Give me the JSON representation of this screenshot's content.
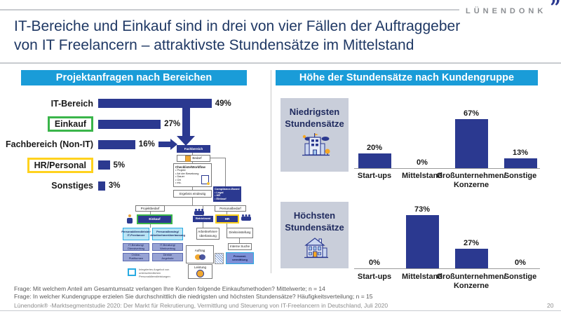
{
  "logo": {
    "text": "LÜNENDONK",
    "mark": "”"
  },
  "title": "IT-Bereiche und Einkauf sind in drei von vier Fällen der Auftraggeber\nvon IT Freelancern – attraktivste Stundensätze im Mittelstand",
  "colors": {
    "accent_cyan": "#1A9CD8",
    "bar_navy": "#2B3990",
    "title_navy": "#1F3864",
    "highlight_green": "#3AB54A",
    "highlight_yellow": "#FFD21E",
    "panel_gray": "#C9CEDA"
  },
  "left_panel": {
    "header": "Projektanfragen nach Bereichen"
  },
  "right_panel": {
    "header": "Höhe der Stundensätze nach Kundengruppe",
    "groups": [
      {
        "label": "Niedrigsten\nStundensätze"
      },
      {
        "label": "Höchsten\nStundensätze"
      }
    ]
  },
  "chart_data": [
    {
      "type": "bar",
      "orientation": "horizontal",
      "title": "Projektanfragen nach Bereichen",
      "categories": [
        "IT-Bereich",
        "Einkauf",
        "Fachbereich (Non-IT)",
        "HR/Personal",
        "Sonstiges"
      ],
      "values": [
        49,
        27,
        16,
        5,
        3
      ],
      "unit": "%",
      "highlights": [
        "none",
        "green",
        "none",
        "yellow",
        "none"
      ],
      "xlim": [
        0,
        55
      ]
    },
    {
      "type": "bar",
      "orientation": "vertical",
      "title": "Niedrigsten Stundensätze",
      "categories": [
        "Start-ups",
        "Mittelstand",
        "Großunternehmen/\nKonzerne",
        "Sonstige"
      ],
      "values": [
        20,
        0,
        67,
        13
      ],
      "unit": "%",
      "ylim": [
        0,
        80
      ]
    },
    {
      "type": "bar",
      "orientation": "vertical",
      "title": "Höchsten Stundensätze",
      "categories": [
        "Start-ups",
        "Mittelstand",
        "Großunternehmen/\nKonzerne",
        "Sonstige"
      ],
      "values": [
        0,
        73,
        27,
        0
      ],
      "unit": "%",
      "ylim": [
        0,
        80
      ]
    }
  ],
  "flowchart": {
    "labels": {
      "fachbereich": "Fachbereich",
      "bedarf": "Bedarf",
      "checkliste_title": "Checkliste/Workflow",
      "checkliste_items": "• Projekt\n• Art der Besetzung\n• Dauer\n• Ort\n• etc.",
      "ergebnis": "Ergebnis eindeutig",
      "nein": "Nein",
      "compliance_title": "Compliance-Board",
      "compliance_items": "• Legal\n• HR\n• Einkauf",
      "projektbedarf": "Projektbedarf",
      "personalbedarf": "Personalbedarf",
      "einkauf": "Einkauf",
      "betriebsrat": "Betriebsrat",
      "hr": "HR",
      "dienstleister": "Personaldienstleister/\nIT-Freelancer",
      "leasing": "Personalleasing/\nArbeitnehmerüberlassung",
      "dienstvertrag": "IT-Beratung/\nDienstvertrag",
      "werkvertrag": "IT-Beratung/\nWerkvertrag",
      "plattformen": "Online-\nPlattformen",
      "direkte": "Direkte\nAngebote",
      "anue": "Arbeitnehmer-\nüberlassung",
      "direkteinstellung": "Direkteinstellung",
      "interne": "Interne Suche",
      "vermittlung": "Personal-\nvermittlung",
      "auftrag": "Auftrag",
      "leistung": "Leistung",
      "legend": "Integriertes Angebot von\nunterschiedlichen Personaldienstleistungen"
    }
  },
  "footnotes": [
    "Frage: Mit welchem Anteil am Gesamtumsatz verlangen Ihre Kunden folgende Einkaufsmethoden? Mittelwerte; n = 14",
    "Frage: In welcher Kundengruppe erzielen Sie durchschnittlich die niedrigsten und höchsten Stundensätze? Häufigkeitsverteilung; n = 15"
  ],
  "footer": {
    "credit": "Lünendonk® -Marktsegmentstudie 2020: Der Markt für Rekrutierung, Vermittlung und Steuerung von IT-Freelancern in Deutschland, Juli 2020",
    "page": "20"
  }
}
